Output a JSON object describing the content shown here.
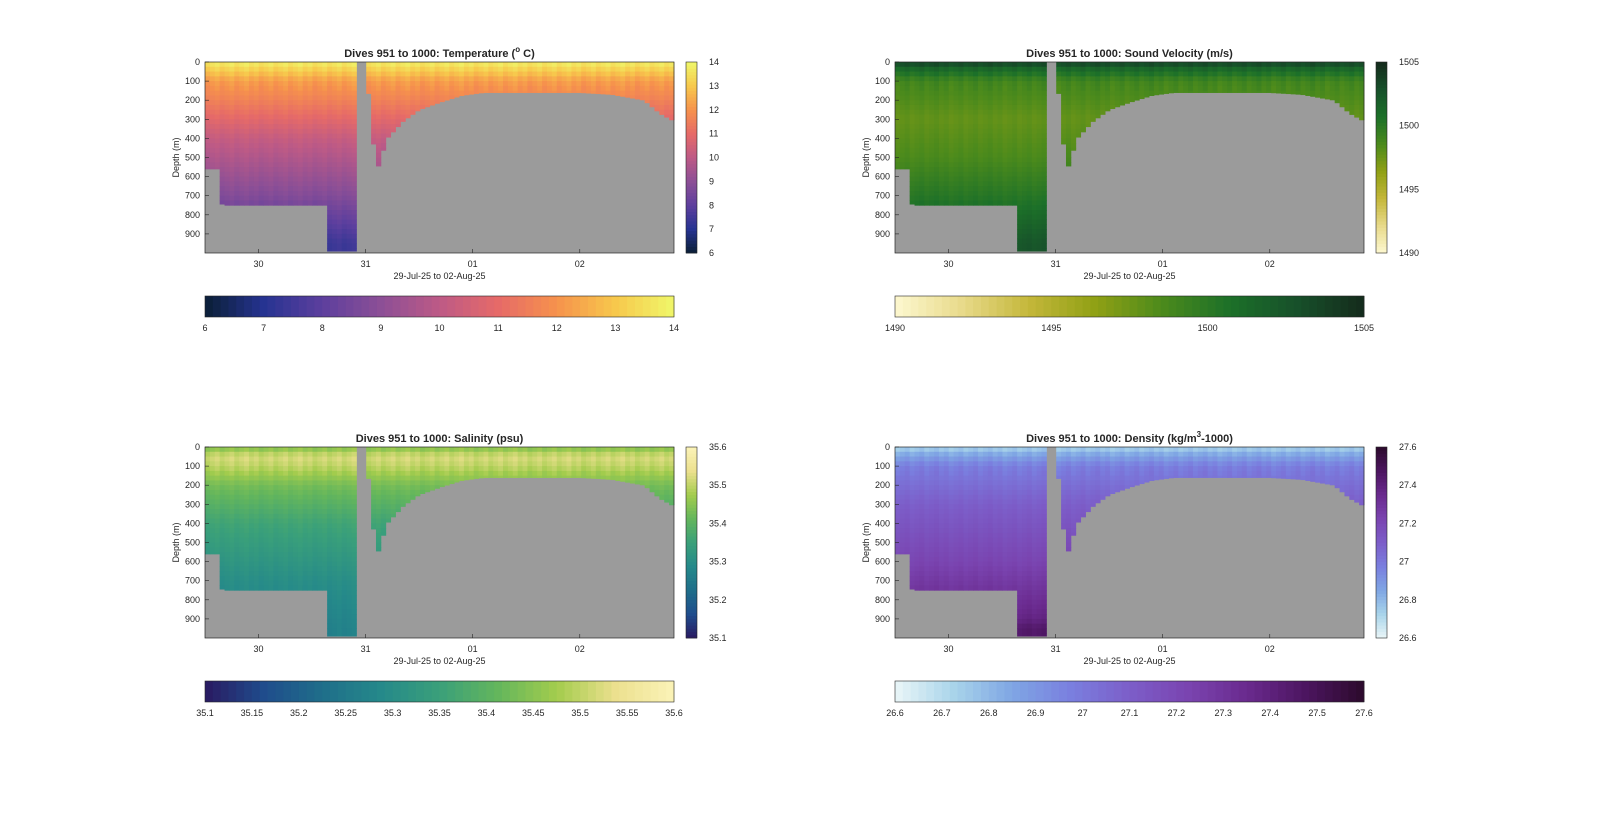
{
  "figure": {
    "x_axis_label": "29-Jul-25 to 02-Aug-25",
    "y_axis_label": "Depth (m)",
    "gap_color": "#9b9b9b"
  },
  "chart_data": [
    {
      "type": "heatmap",
      "id": "temperature",
      "title_prefix": "Dives 951 to 1000: Temperature (",
      "title_sup": "o",
      "title_suffix": " C)",
      "xlabel": "29-Jul-25 to 02-Aug-25",
      "ylabel": "Depth (m)",
      "x_ticks": [
        "30",
        "31",
        "01",
        "02"
      ],
      "x_tick_days": [
        30,
        31,
        32,
        33
      ],
      "xlim_days": [
        29.5,
        33.88
      ],
      "ylim": [
        0,
        1000
      ],
      "y_ticks": [
        0,
        100,
        200,
        300,
        400,
        500,
        600,
        700,
        800,
        900
      ],
      "clim": [
        6,
        14
      ],
      "vertical_colorbar_ticks": [
        "6",
        "7",
        "8",
        "9",
        "10",
        "11",
        "12",
        "13",
        "14"
      ],
      "horizontal_colorbar_ticks": [
        "6",
        "7",
        "8",
        "9",
        "10",
        "11",
        "12",
        "13",
        "14"
      ],
      "colormap": [
        "#0a1f36",
        "#263391",
        "#5d3f9e",
        "#8c4f96",
        "#bd5a86",
        "#e66a68",
        "#f6924c",
        "#f7c84c",
        "#f0f76a"
      ],
      "profile": {
        "depth": [
          0,
          40,
          100,
          200,
          400,
          700,
          950
        ],
        "value": [
          13.8,
          13.2,
          12.2,
          11.6,
          10.2,
          8.8,
          7.4
        ]
      }
    },
    {
      "type": "heatmap",
      "id": "sound_velocity",
      "title_prefix": "Dives 951 to 1000: Sound Velocity (m/s)",
      "title_sup": "",
      "title_suffix": "",
      "xlabel": "29-Jul-25 to 02-Aug-25",
      "ylabel": "Depth (m)",
      "x_ticks": [
        "30",
        "31",
        "01",
        "02"
      ],
      "x_tick_days": [
        30,
        31,
        32,
        33
      ],
      "xlim_days": [
        29.5,
        33.88
      ],
      "ylim": [
        0,
        1000
      ],
      "y_ticks": [
        0,
        100,
        200,
        300,
        400,
        500,
        600,
        700,
        800,
        900
      ],
      "clim": [
        1490,
        1505
      ],
      "vertical_colorbar_ticks": [
        "1490",
        "1495",
        "1500",
        "1505"
      ],
      "horizontal_colorbar_ticks": [
        "1490",
        "1495",
        "1500",
        "1505"
      ],
      "colormap": [
        "#fdf8d0",
        "#e8da8a",
        "#c4b73a",
        "#8fa014",
        "#4b8a1c",
        "#1c7029",
        "#17502a",
        "#142b1c"
      ],
      "profile": {
        "depth": [
          0,
          20,
          100,
          300,
          500,
          700,
          950
        ],
        "value": [
          1504.5,
          1502,
          1499,
          1497.8,
          1498.6,
          1500.2,
          1502.5
        ]
      }
    },
    {
      "type": "heatmap",
      "id": "salinity",
      "title_prefix": "Dives 951 to 1000: Salinity (psu)",
      "title_sup": "",
      "title_suffix": "",
      "xlabel": "29-Jul-25 to 02-Aug-25",
      "ylabel": "Depth (m)",
      "x_ticks": [
        "30",
        "31",
        "01",
        "02"
      ],
      "x_tick_days": [
        30,
        31,
        32,
        33
      ],
      "xlim_days": [
        29.5,
        33.88
      ],
      "ylim": [
        0,
        1000
      ],
      "y_ticks": [
        0,
        100,
        200,
        300,
        400,
        500,
        600,
        700,
        800,
        900
      ],
      "clim": [
        35.1,
        35.6
      ],
      "vertical_colorbar_ticks": [
        "35.1",
        "35.2",
        "35.3",
        "35.4",
        "35.5",
        "35.6"
      ],
      "horizontal_colorbar_ticks": [
        "35.1",
        "35.15",
        "35.2",
        "35.25",
        "35.3",
        "35.35",
        "35.4",
        "35.45",
        "35.5",
        "35.55",
        "35.6"
      ],
      "colormap": [
        "#2a1a61",
        "#1f4c8c",
        "#1f6e8a",
        "#25898a",
        "#3aa07a",
        "#64b65c",
        "#a3cc4d",
        "#ece08e",
        "#fbf3b8"
      ],
      "profile": {
        "depth": [
          0,
          50,
          100,
          200,
          400,
          700,
          950
        ],
        "value": [
          35.44,
          35.52,
          35.5,
          35.43,
          35.36,
          35.3,
          35.27
        ]
      }
    },
    {
      "type": "heatmap",
      "id": "density",
      "title_prefix": "Dives 951 to 1000: Density (kg/m",
      "title_sup": "3",
      "title_suffix": "-1000)",
      "xlabel": "29-Jul-25 to 02-Aug-25",
      "ylabel": "Depth (m)",
      "x_ticks": [
        "30",
        "31",
        "01",
        "02"
      ],
      "x_tick_days": [
        30,
        31,
        32,
        33
      ],
      "xlim_days": [
        29.5,
        33.88
      ],
      "ylim": [
        0,
        1000
      ],
      "y_ticks": [
        0,
        100,
        200,
        300,
        400,
        500,
        600,
        700,
        800,
        900
      ],
      "clim": [
        26.6,
        27.6
      ],
      "vertical_colorbar_ticks": [
        "26.6",
        "26.8",
        "27",
        "27.2",
        "27.4",
        "27.6"
      ],
      "horizontal_colorbar_ticks": [
        "26.6",
        "26.7",
        "26.8",
        "26.9",
        "27",
        "27.1",
        "27.2",
        "27.3",
        "27.4",
        "27.5",
        "27.6"
      ],
      "colormap": [
        "#eaf6f8",
        "#a9d4ea",
        "#7fa6e4",
        "#7a7fdf",
        "#7c5ec9",
        "#7a44b0",
        "#6a2a8e",
        "#4c1560",
        "#2c0a2c"
      ],
      "profile": {
        "depth": [
          0,
          30,
          100,
          300,
          600,
          900,
          950
        ],
        "value": [
          26.72,
          26.82,
          26.98,
          27.1,
          27.22,
          27.38,
          27.45
        ]
      }
    }
  ],
  "bathymetry_profile": {
    "day": [
      29.5,
      29.65,
      29.66,
      30.0,
      30.5,
      30.65,
      30.66,
      30.93,
      30.94,
      31.0,
      31.1,
      31.2,
      31.35,
      31.5,
      31.7,
      31.9,
      32.1,
      32.5,
      33.0,
      33.3,
      33.6,
      33.75,
      33.88
    ],
    "depth": [
      560,
      560,
      750,
      750,
      750,
      750,
      990,
      990,
      0,
      0,
      580,
      400,
      310,
      250,
      210,
      175,
      160,
      160,
      160,
      170,
      200,
      270,
      310
    ]
  }
}
